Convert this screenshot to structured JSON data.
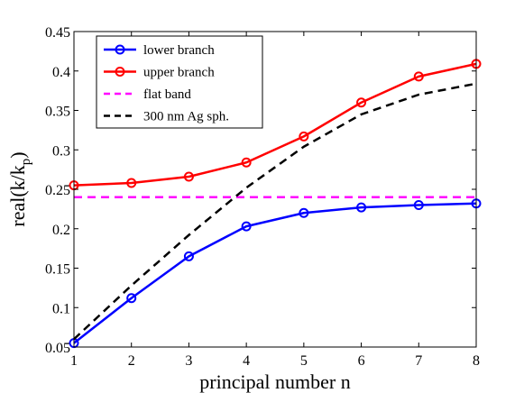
{
  "chart_data": {
    "type": "line",
    "x": [
      1,
      2,
      3,
      4,
      5,
      6,
      7,
      8
    ],
    "xlim": [
      1,
      8
    ],
    "ylim": [
      0.05,
      0.45
    ],
    "xticks": [
      "1",
      "2",
      "3",
      "4",
      "5",
      "6",
      "7",
      "8"
    ],
    "yticks": [
      "0.05",
      "0.1",
      "0.15",
      "0.2",
      "0.25",
      "0.3",
      "0.35",
      "0.4",
      "0.45"
    ],
    "xlabel": "principal number n",
    "ylabel_main": "real(k/k",
    "ylabel_sub": "p",
    "ylabel_close": ")",
    "grid": false,
    "legend_position": "top-left",
    "series": [
      {
        "name": "lower branch",
        "color": "#0000ff",
        "style": "solid",
        "marker": "circle",
        "values": [
          0.055,
          0.112,
          0.165,
          0.203,
          0.22,
          0.227,
          0.23,
          0.232
        ]
      },
      {
        "name": "upper branch",
        "color": "#ff0000",
        "style": "solid",
        "marker": "circle",
        "values": [
          0.255,
          0.258,
          0.266,
          0.284,
          0.317,
          0.36,
          0.393,
          0.409
        ]
      },
      {
        "name": "flat band",
        "color": "#ff00ff",
        "style": "dashed",
        "marker": "none",
        "values": [
          0.24,
          0.24,
          0.24,
          0.24,
          0.24,
          0.24,
          0.24,
          0.24
        ]
      },
      {
        "name": "300 nm Ag sph.",
        "color": "#000000",
        "style": "dashed",
        "marker": "none",
        "values": [
          0.06,
          0.128,
          0.192,
          0.252,
          0.304,
          0.345,
          0.37,
          0.384
        ]
      }
    ]
  }
}
